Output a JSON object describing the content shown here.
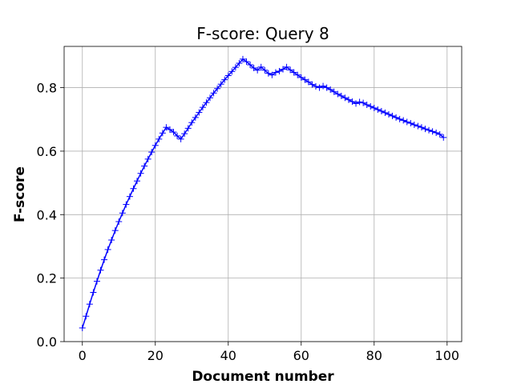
{
  "chart_data": {
    "type": "line",
    "title": "F-score: Query 8",
    "xlabel": "Document number",
    "ylabel": "F-score",
    "xlim": [
      -5,
      104
    ],
    "ylim": [
      0,
      0.93
    ],
    "xticks": [
      0,
      20,
      40,
      60,
      80,
      100
    ],
    "yticks": [
      0.0,
      0.2,
      0.4,
      0.6,
      0.8
    ],
    "ytick_labels": [
      "0.0",
      "0.2",
      "0.4",
      "0.6",
      "0.8"
    ],
    "grid": true,
    "marker": "+",
    "color": "#0000ff",
    "series": [
      {
        "x": [
          0,
          1,
          2,
          3,
          4,
          5,
          6,
          7,
          8,
          9,
          10,
          11,
          12,
          13,
          14,
          15,
          16,
          17,
          18,
          19,
          20,
          21,
          22,
          23,
          24,
          25,
          26,
          27,
          28,
          29,
          30,
          31,
          32,
          33,
          34,
          35,
          36,
          37,
          38,
          39,
          40,
          41,
          42,
          43,
          44,
          45,
          46,
          47,
          48,
          49,
          50,
          51,
          52,
          53,
          54,
          55,
          56,
          57,
          58,
          59,
          60,
          61,
          62,
          63,
          64,
          65,
          66,
          67,
          68,
          69,
          70,
          71,
          72,
          73,
          74,
          75,
          76,
          77,
          78,
          79,
          80,
          81,
          82,
          83,
          84,
          85,
          86,
          87,
          88,
          89,
          90,
          91,
          92,
          93,
          94,
          95,
          96,
          97,
          98,
          99
        ],
        "y": [
          0.043,
          0.08,
          0.118,
          0.155,
          0.19,
          0.225,
          0.258,
          0.29,
          0.32,
          0.35,
          0.378,
          0.405,
          0.432,
          0.457,
          0.482,
          0.506,
          0.53,
          0.553,
          0.575,
          0.597,
          0.618,
          0.638,
          0.657,
          0.675,
          0.668,
          0.66,
          0.648,
          0.638,
          0.655,
          0.672,
          0.69,
          0.706,
          0.722,
          0.738,
          0.753,
          0.768,
          0.783,
          0.797,
          0.811,
          0.825,
          0.838,
          0.851,
          0.864,
          0.877,
          0.89,
          0.882,
          0.872,
          0.862,
          0.855,
          0.865,
          0.855,
          0.845,
          0.84,
          0.848,
          0.852,
          0.858,
          0.865,
          0.856,
          0.848,
          0.84,
          0.832,
          0.825,
          0.818,
          0.81,
          0.804,
          0.8,
          0.805,
          0.8,
          0.794,
          0.787,
          0.78,
          0.774,
          0.768,
          0.762,
          0.756,
          0.75,
          0.755,
          0.752,
          0.746,
          0.741,
          0.736,
          0.731,
          0.726,
          0.721,
          0.716,
          0.711,
          0.706,
          0.701,
          0.697,
          0.692,
          0.688,
          0.683,
          0.679,
          0.675,
          0.67,
          0.666,
          0.662,
          0.658,
          0.653,
          0.643
        ]
      }
    ]
  }
}
